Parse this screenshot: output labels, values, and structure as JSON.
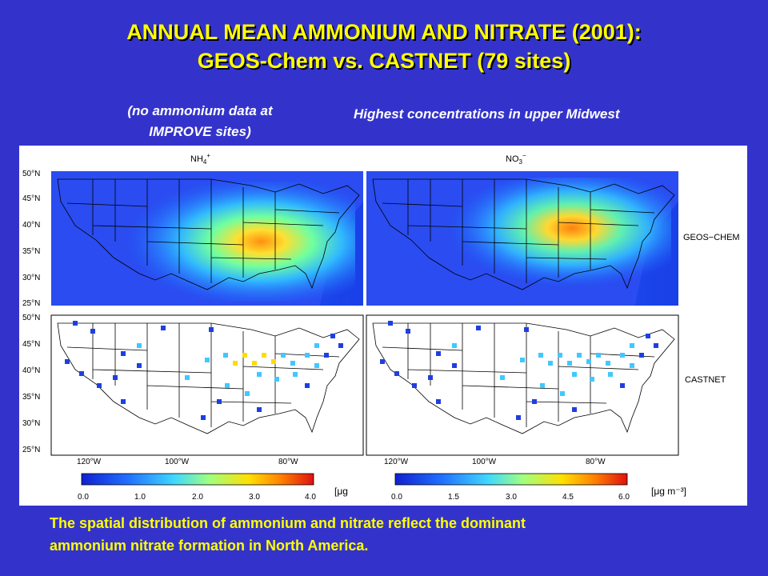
{
  "slide": {
    "title_line1": "ANNUAL MEAN AMMONIUM AND NITRATE (2001):",
    "title_line2": "GEOS-Chem vs. CASTNET (79 sites)",
    "note_left_line1": "(no ammonium data at",
    "note_left_line2": "IMPROVE sites)",
    "note_right": "Highest concentrations in upper Midwest",
    "footer_line1": "The spatial distribution of ammonium and nitrate reflect the dominant",
    "footer_line2": "ammonium nitrate formation in North America."
  },
  "figure": {
    "species": [
      {
        "label": "NH",
        "sub": "4",
        "sup": "+"
      },
      {
        "label": "NO",
        "sub": "3",
        "sup": "−"
      }
    ],
    "row_labels": [
      "GEOS−CHEM",
      "CASTNET"
    ],
    "lat_labels": [
      "50°N",
      "45°N",
      "40°N",
      "35°N",
      "30°N",
      "25°N"
    ],
    "lon_labels": [
      "120°W",
      "100°W",
      "80°W"
    ],
    "colorbars": [
      {
        "ticks": [
          "0.0",
          "1.0",
          "2.0",
          "3.0",
          "4.0"
        ],
        "unit": "[μg"
      },
      {
        "ticks": [
          "0.0",
          "1.5",
          "3.0",
          "4.5",
          "6.0"
        ],
        "unit": "[μg m⁻³]"
      }
    ],
    "colors": {
      "background": "#3333cc",
      "title": "#ffff00",
      "low": "#1f3fe0",
      "mid": "#40c8ff",
      "high_mid": "#ffdc00",
      "high": "#ff2000"
    }
  }
}
